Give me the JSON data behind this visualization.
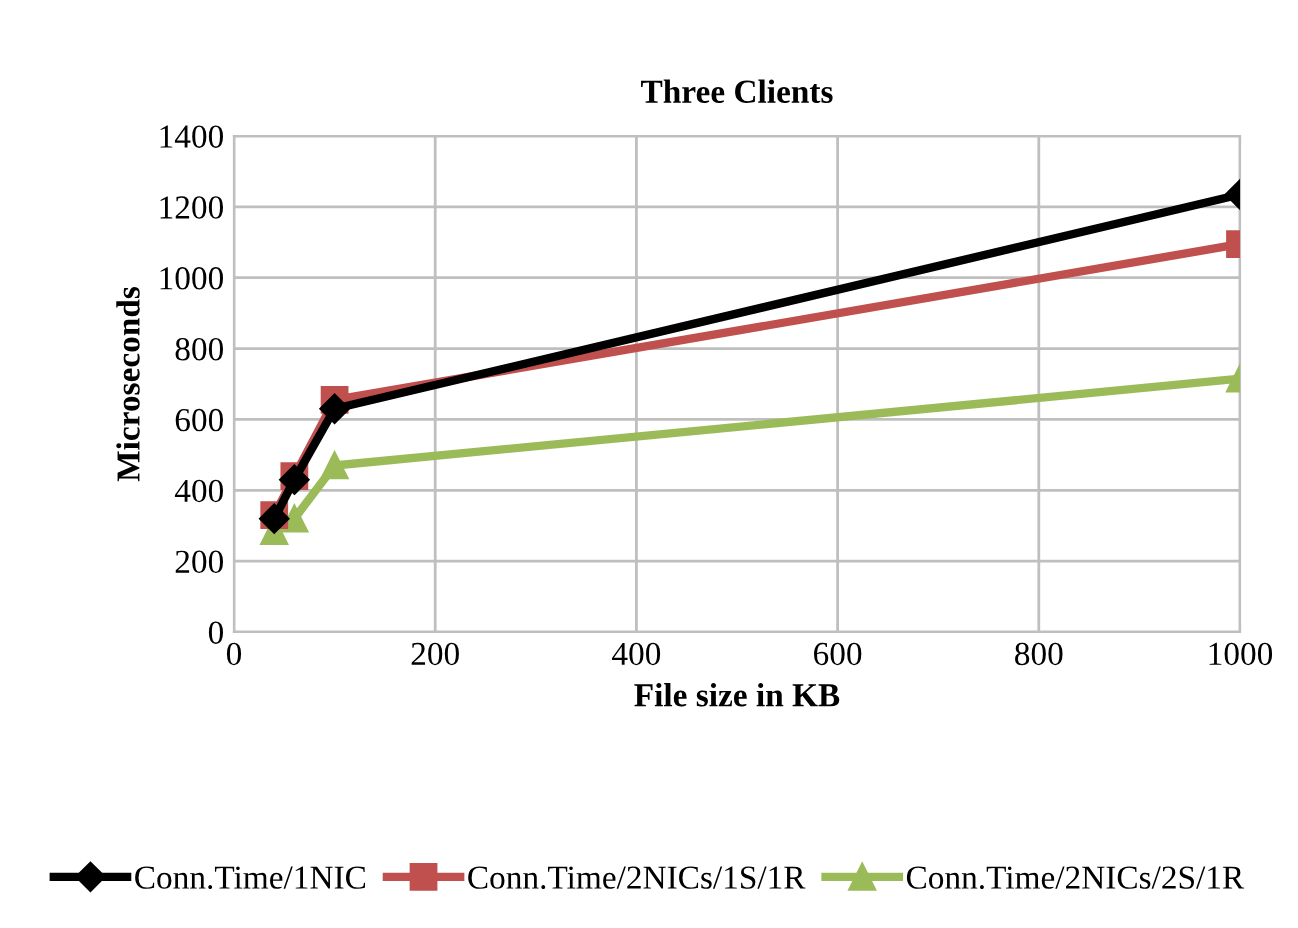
{
  "chart_data": {
    "type": "line",
    "title": "Three Clients",
    "xlabel": "File size in KB",
    "ylabel": "Microseconds",
    "x": [
      40,
      60,
      100,
      1000
    ],
    "series": [
      {
        "name": "Conn.Time/1NIC",
        "color": "#000000",
        "marker": "diamond",
        "values": [
          320,
          430,
          630,
          1235
        ]
      },
      {
        "name": "Conn.Time/2NICs/1S/1R",
        "color": "#c0504d",
        "marker": "square",
        "values": [
          330,
          440,
          655,
          1095
        ]
      },
      {
        "name": "Conn.Time/2NICs/2S/1R",
        "color": "#9bbb59",
        "marker": "triangle",
        "values": [
          285,
          320,
          470,
          715
        ]
      }
    ],
    "xlim": [
      0,
      1000
    ],
    "xticks": [
      0,
      200,
      400,
      600,
      800,
      1000
    ],
    "ylim": [
      0,
      1400
    ],
    "yticks": [
      0,
      200,
      400,
      600,
      800,
      1000,
      1200,
      1400
    ],
    "grid": true,
    "legend": "bottom"
  }
}
